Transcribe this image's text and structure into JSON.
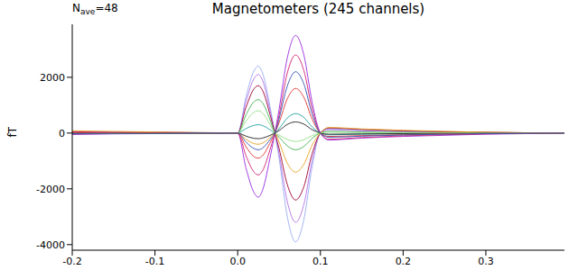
{
  "chart_data": {
    "type": "line",
    "title": "Magnetometers (245 channels)",
    "y_label": "fT",
    "annotation": {
      "base": "N",
      "subscript": "ave",
      "text": "=48"
    },
    "x": [
      -0.2,
      -0.15,
      -0.1,
      -0.05,
      0,
      0.01,
      0.02,
      0.025,
      0.03,
      0.04,
      0.045,
      0.05,
      0.06,
      0.07,
      0.08,
      0.09,
      0.1,
      0.11,
      0.15,
      0.2,
      0.25,
      0.3,
      0.35,
      0.395
    ],
    "series": [
      {
        "color": "#9aaaf0",
        "values": [
          60,
          40,
          30,
          20,
          0,
          1300,
          2250,
          2400,
          2150,
          800,
          0,
          -900,
          -3000,
          -3900,
          -3100,
          -1200,
          0,
          150,
          100,
          60,
          40,
          20,
          10,
          0
        ]
      },
      {
        "color": "#9a2be0",
        "values": [
          -50,
          -30,
          -20,
          -10,
          0,
          -1250,
          -2150,
          -2300,
          -2050,
          -750,
          0,
          850,
          2700,
          3500,
          2800,
          1100,
          0,
          -250,
          -180,
          -120,
          -80,
          -40,
          -20,
          0
        ]
      },
      {
        "color": "#b070e8",
        "values": [
          40,
          30,
          20,
          10,
          0,
          1130,
          1970,
          2100,
          1890,
          690,
          0,
          -740,
          -2460,
          -3200,
          -2560,
          -990,
          0,
          120,
          80,
          50,
          30,
          15,
          5,
          0
        ]
      },
      {
        "color": "#9a0030",
        "values": [
          -30,
          -20,
          -20,
          -10,
          0,
          920,
          1600,
          1700,
          1530,
          560,
          0,
          -550,
          -1850,
          -2400,
          -1920,
          -740,
          0,
          180,
          130,
          80,
          50,
          30,
          10,
          0
        ]
      },
      {
        "color": "#d02070",
        "values": [
          50,
          30,
          30,
          10,
          0,
          -810,
          -1410,
          -1500,
          -1350,
          -500,
          0,
          640,
          2160,
          2800,
          2240,
          870,
          0,
          -220,
          -160,
          -100,
          -60,
          -30,
          -10,
          0
        ]
      },
      {
        "color": "#40b050",
        "values": [
          -20,
          -10,
          -10,
          -5,
          0,
          650,
          1130,
          1200,
          1080,
          400,
          0,
          -140,
          -460,
          -600,
          -480,
          -190,
          0,
          60,
          40,
          20,
          10,
          5,
          0,
          0
        ]
      },
      {
        "color": "#e8a020",
        "values": [
          80,
          60,
          40,
          20,
          0,
          -220,
          -380,
          -400,
          -360,
          -130,
          0,
          -320,
          -1080,
          -1400,
          -1120,
          -430,
          0,
          200,
          150,
          100,
          60,
          30,
          10,
          0
        ]
      },
      {
        "color": "#20a0a0",
        "values": [
          10,
          10,
          0,
          0,
          0,
          160,
          280,
          300,
          270,
          100,
          0,
          160,
          540,
          700,
          560,
          220,
          0,
          -60,
          -40,
          -30,
          -20,
          -10,
          0,
          0
        ]
      },
      {
        "color": "#202020",
        "values": [
          0,
          0,
          0,
          0,
          0,
          -110,
          -190,
          -200,
          -180,
          -70,
          0,
          90,
          310,
          400,
          320,
          120,
          0,
          -40,
          -30,
          -20,
          -10,
          0,
          0,
          0
        ]
      },
      {
        "color": "#90e080",
        "values": [
          -10,
          -10,
          0,
          0,
          0,
          430,
          750,
          800,
          720,
          260,
          0,
          -70,
          -230,
          -300,
          -240,
          -90,
          0,
          30,
          20,
          10,
          5,
          0,
          0,
          0
        ]
      },
      {
        "color": "#e03030",
        "values": [
          20,
          10,
          10,
          0,
          0,
          -490,
          -850,
          -900,
          -810,
          -300,
          0,
          370,
          1230,
          1600,
          1280,
          500,
          0,
          -120,
          -90,
          -60,
          -30,
          -15,
          -5,
          0
        ]
      },
      {
        "color": "#3050b0",
        "values": [
          -20,
          -10,
          -10,
          0,
          0,
          -320,
          -560,
          -600,
          -540,
          -200,
          0,
          510,
          1690,
          2200,
          1760,
          680,
          0,
          -150,
          -110,
          -70,
          -40,
          -20,
          -10,
          0
        ]
      }
    ],
    "xlim": [
      -0.2,
      0.395
    ],
    "ylim": [
      -4200,
      3900
    ],
    "xticks": [
      -0.2,
      -0.1,
      {
        "value": 0,
        "label": "0.0"
      },
      0.1,
      0.2,
      0.3
    ],
    "yticks": [
      -4000,
      -2000,
      0,
      2000
    ],
    "grid": false
  }
}
